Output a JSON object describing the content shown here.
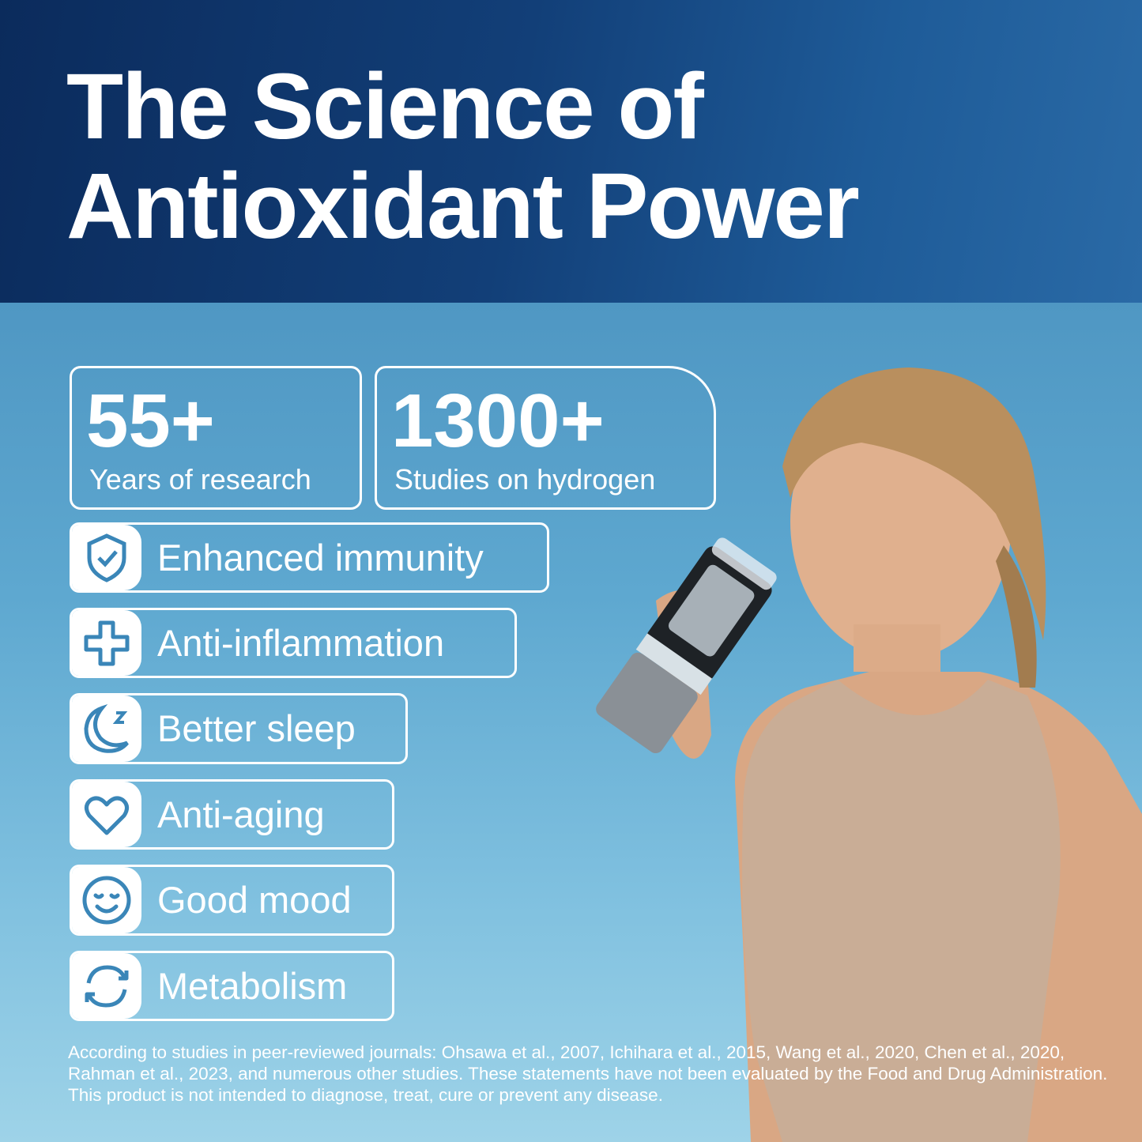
{
  "title": {
    "line1": "The Science of",
    "line2": "Antioxidant Power"
  },
  "stats": [
    {
      "value": "55+",
      "label": "Years of research"
    },
    {
      "value": "1300+",
      "label": "Studies on hydrogen"
    }
  ],
  "features": [
    {
      "icon": "shield-check-icon",
      "label": "Enhanced immunity"
    },
    {
      "icon": "medical-cross-icon",
      "label": "Anti-inflammation"
    },
    {
      "icon": "moon-sleep-icon",
      "label": "Better sleep"
    },
    {
      "icon": "heart-icon",
      "label": "Anti-aging"
    },
    {
      "icon": "smile-face-icon",
      "label": "Good mood"
    },
    {
      "icon": "refresh-cycle-icon",
      "label": "Metabolism"
    }
  ],
  "disclaimer": "According to studies in peer-reviewed journals: Ohsawa et al., 2007,  Ichihara et al., 2015, Wang et al., 2020, Chen et al., 2020, Rahman et al., 2023, and numerous other studies. These statements have not been evaluated by the Food and Drug Administration. This product is not intended to diagnose, treat, cure or prevent any disease.",
  "colors": {
    "header": "#0b2b5c",
    "icon": "#3a86b8",
    "sky": "#5ea8d0"
  }
}
